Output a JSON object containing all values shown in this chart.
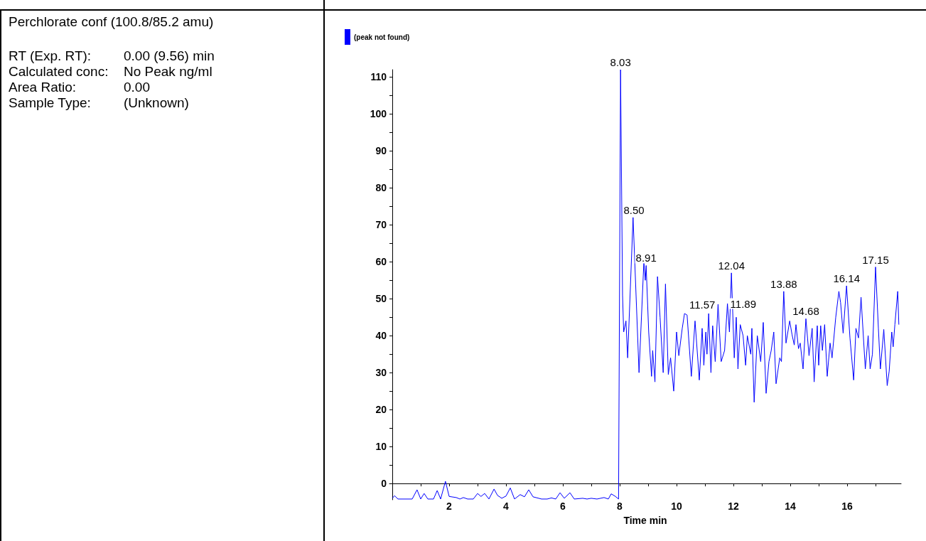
{
  "chart_data": [
    {
      "type": "other",
      "title": "Perchlorate conf (100.8/85.2 amu)",
      "annotations": [
        "RT (Exp. RT):",
        "0.00 (9.56) min",
        "Calculated conc:",
        "No Peak ng/ml",
        "Area Ratio:",
        "0.00",
        "Sample Type:",
        "(Unknown)"
      ]
    },
    {
      "type": "line",
      "xlabel": "Time min",
      "legend": "top left",
      "marker": "none",
      "line_style": "solid",
      "grid": false,
      "xlim": [
        -0.1,
        17.9
      ],
      "xticks": [
        {
          "value": 1,
          "label": null
        },
        2,
        {
          "value": 3,
          "label": null
        },
        4,
        {
          "value": 5,
          "label": null
        },
        6,
        {
          "value": 7,
          "label": null
        },
        8,
        {
          "value": 9,
          "label": null
        },
        10,
        {
          "value": 11,
          "label": null
        },
        12,
        {
          "value": 13,
          "label": null
        },
        14,
        {
          "value": 15,
          "label": null
        },
        16,
        {
          "value": 17,
          "label": null
        }
      ],
      "ylim": [
        -4.4,
        112
      ],
      "yticks": [
        0,
        {
          "value": 5,
          "label": null
        },
        10,
        {
          "value": 15,
          "label": null
        },
        20,
        {
          "value": 25,
          "label": null
        },
        30,
        {
          "value": 35,
          "label": null
        },
        40,
        {
          "value": 45,
          "label": null
        },
        50,
        {
          "value": 55,
          "label": null
        },
        60,
        {
          "value": 65,
          "label": null
        },
        70,
        {
          "value": 75,
          "label": null
        },
        80,
        {
          "value": 85,
          "label": null
        },
        90,
        {
          "value": 95,
          "label": null
        },
        100,
        {
          "value": 105,
          "label": null
        },
        110
      ],
      "series": [
        {
          "name": "(peak not found)",
          "color": "#0000ff",
          "x": [
            0,
            0.08,
            0.2,
            0.7,
            0.87,
            1.0,
            1.12,
            1.25,
            1.45,
            1.58,
            1.7,
            1.87,
            2.0,
            2.25,
            2.38,
            2.5,
            2.65,
            2.85,
            3.0,
            3.12,
            3.25,
            3.4,
            3.58,
            3.7,
            3.85,
            4.0,
            4.15,
            4.3,
            4.5,
            4.65,
            4.8,
            4.95,
            5.1,
            5.25,
            5.45,
            5.6,
            5.75,
            5.9,
            6.05,
            6.25,
            6.4,
            6.7,
            6.85,
            7.0,
            7.2,
            7.45,
            7.6,
            7.7,
            7.85,
            7.96,
            8.03,
            8.1,
            8.14,
            8.22,
            8.28,
            8.47,
            8.68,
            8.85,
            8.9,
            8.93,
            9.02,
            9.12,
            9.16,
            9.24,
            9.33,
            9.42,
            9.53,
            9.61,
            9.71,
            9.79,
            9.9,
            10.0,
            10.08,
            10.2,
            10.28,
            10.37,
            10.52,
            10.65,
            10.8,
            10.9,
            10.96,
            11.03,
            11.07,
            11.13,
            11.21,
            11.27,
            11.36,
            11.46,
            11.57,
            11.69,
            11.79,
            11.86,
            11.93,
            12.03,
            12.1,
            12.16,
            12.24,
            12.34,
            12.43,
            12.49,
            12.61,
            12.65,
            12.73,
            12.84,
            12.96,
            13.05,
            13.15,
            13.25,
            13.33,
            13.42,
            13.5,
            13.63,
            13.69,
            13.77,
            13.85,
            13.98,
            14.06,
            14.14,
            14.2,
            14.29,
            14.35,
            14.45,
            14.55,
            14.66,
            14.77,
            14.84,
            14.95,
            15.0,
            15.07,
            15.13,
            15.21,
            15.3,
            15.4,
            15.47,
            15.6,
            15.71,
            15.77,
            15.86,
            15.98,
            16.1,
            16.23,
            16.31,
            16.4,
            16.49,
            16.64,
            16.74,
            16.81,
            16.89,
            17.0,
            17.1,
            17.17,
            17.29,
            17.41,
            17.48,
            17.57,
            17.62,
            17.68,
            17.78,
            17.82
          ],
          "values": [
            -4,
            -3.3,
            -4.2,
            -4.2,
            -1.7,
            -4.2,
            -2.7,
            -4.2,
            -4.2,
            -1.9,
            -4.2,
            0.6,
            -3.5,
            -3.8,
            -4.2,
            -3.8,
            -4.2,
            -4.2,
            -2.7,
            -3.5,
            -2.7,
            -4.2,
            -1.5,
            -3.2,
            -4,
            -3.4,
            -1.2,
            -4.2,
            -3,
            -3.6,
            -1.7,
            -3.6,
            -3.9,
            -4.2,
            -4.2,
            -3.9,
            -4.2,
            -2.5,
            -4,
            -2.5,
            -4.2,
            -4,
            -4.2,
            -4,
            -4.2,
            -3.8,
            -4.2,
            -2.8,
            -3.5,
            -4.2,
            112,
            51,
            41,
            44,
            34,
            72,
            30,
            60,
            55,
            59,
            41,
            29,
            36,
            27.5,
            56,
            45,
            30,
            54,
            29.5,
            34,
            25,
            41,
            34.6,
            42,
            46,
            45.6,
            29,
            44,
            28,
            42,
            32,
            41,
            35,
            46,
            30,
            42.7,
            33,
            48.5,
            33,
            36,
            48.7,
            41,
            57,
            34,
            45,
            31,
            43,
            40,
            32,
            40,
            35,
            42,
            22,
            40,
            33,
            43.6,
            24.4,
            33,
            36,
            41,
            27,
            34,
            33,
            52,
            38,
            44,
            40.4,
            37.5,
            43,
            36.5,
            38,
            31,
            44.6,
            34.6,
            42,
            27.5,
            42.7,
            32,
            42.7,
            36,
            43,
            29,
            38,
            34,
            45,
            52,
            49,
            40.7,
            53.5,
            39.4,
            28,
            42,
            39.4,
            50.4,
            31,
            40,
            31,
            35,
            58.6,
            42,
            31,
            41.7,
            26.5,
            30.4,
            41,
            37,
            43,
            52,
            43
          ]
        }
      ],
      "annotations": [
        {
          "text": "8.03",
          "x": 8.03,
          "y": 112
        },
        {
          "text": "8.50",
          "x": 8.5,
          "y": 72
        },
        {
          "text": "8.91",
          "x": 8.93,
          "y": 59
        },
        {
          "text": "11.57",
          "x": 11.46,
          "y": 48.5
        },
        {
          "text": "12.04",
          "x": 11.93,
          "y": 57
        },
        {
          "text": "11.89",
          "x": 11.79,
          "y": 48.7
        },
        {
          "text": "13.88",
          "x": 13.77,
          "y": 52
        },
        {
          "text": "14.68",
          "x": 14.55,
          "y": 44.6
        },
        {
          "text": "16.14",
          "x": 15.98,
          "y": 53.5
        },
        {
          "text": "17.15",
          "x": 17.0,
          "y": 58.6
        }
      ]
    }
  ]
}
